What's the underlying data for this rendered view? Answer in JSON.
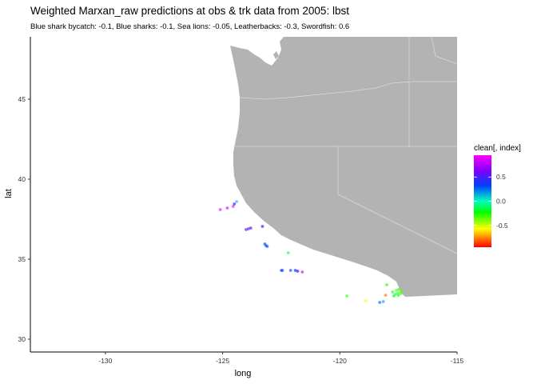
{
  "title": "Weighted Marxan_raw predictions at obs & trk data from 2005: lbst",
  "subtitle": "Blue shark bycatch: -0.1, Blue sharks: -0.1, Sea lions: -0.05, Leatherbacks: -0.3, Swordfish: 0.6",
  "colors": {
    "land": "#b3b3b3",
    "border": "#d9d9d9",
    "axis": "#000000"
  },
  "chart_data": {
    "type": "scatter",
    "xlabel": "long",
    "ylabel": "lat",
    "xlim": [
      -133.2,
      -115
    ],
    "ylim": [
      29.2,
      48.9
    ],
    "xticks": [
      -130,
      -125,
      -120,
      -115
    ],
    "xtick_labels": [
      "-130",
      "-125",
      "-120",
      "-115"
    ],
    "yticks": [
      30,
      35,
      40,
      45
    ],
    "ytick_labels": [
      "30",
      "35",
      "40",
      "45"
    ],
    "grid": false,
    "legend": {
      "title": "clean[, index]",
      "placement": "right",
      "type": "colorbar",
      "range": [
        -0.95,
        0.95
      ],
      "ticks": [
        0.5,
        0.0,
        -0.5
      ],
      "tick_labels": [
        "0.5",
        "0.0",
        "-0.5"
      ]
    },
    "points": [
      {
        "x": -124.4,
        "y": 38.6,
        "value": 0.3
      },
      {
        "x": -124.5,
        "y": 38.45,
        "value": 0.6
      },
      {
        "x": -124.55,
        "y": 38.3,
        "value": 0.9
      },
      {
        "x": -124.8,
        "y": 38.2,
        "value": 0.85
      },
      {
        "x": -125.1,
        "y": 38.1,
        "value": 0.9
      },
      {
        "x": -123.3,
        "y": 37.05,
        "value": 0.6
      },
      {
        "x": -123.8,
        "y": 36.95,
        "value": 0.65
      },
      {
        "x": -123.9,
        "y": 36.9,
        "value": 0.7
      },
      {
        "x": -124.0,
        "y": 36.85,
        "value": 0.7
      },
      {
        "x": -123.2,
        "y": 35.95,
        "value": 0.5
      },
      {
        "x": -123.15,
        "y": 35.85,
        "value": 0.45
      },
      {
        "x": -123.1,
        "y": 35.8,
        "value": 0.5
      },
      {
        "x": -122.2,
        "y": 35.4,
        "value": -0.05
      },
      {
        "x": -122.5,
        "y": 34.3,
        "value": 0.45
      },
      {
        "x": -122.45,
        "y": 34.3,
        "value": 0.5
      },
      {
        "x": -122.1,
        "y": 34.3,
        "value": 0.5
      },
      {
        "x": -121.9,
        "y": 34.3,
        "value": 0.55
      },
      {
        "x": -121.8,
        "y": 34.25,
        "value": 0.6
      },
      {
        "x": -121.6,
        "y": 34.2,
        "value": 0.85
      },
      {
        "x": -118.0,
        "y": 33.4,
        "value": -0.2
      },
      {
        "x": -119.7,
        "y": 32.7,
        "value": -0.25
      },
      {
        "x": -118.9,
        "y": 32.4,
        "value": -0.55
      },
      {
        "x": -118.3,
        "y": 32.3,
        "value": 0.45
      },
      {
        "x": -118.15,
        "y": 32.35,
        "value": 0.35
      },
      {
        "x": -118.05,
        "y": 32.75,
        "value": -0.8
      },
      {
        "x": -117.75,
        "y": 32.95,
        "value": -0.15
      },
      {
        "x": -117.6,
        "y": 33.05,
        "value": -0.3
      },
      {
        "x": -117.5,
        "y": 33.1,
        "value": -0.2
      },
      {
        "x": -117.45,
        "y": 32.95,
        "value": -0.35
      },
      {
        "x": -117.4,
        "y": 32.85,
        "value": -0.25
      },
      {
        "x": -117.55,
        "y": 32.85,
        "value": -0.1
      },
      {
        "x": -117.65,
        "y": 32.8,
        "value": -0.05
      },
      {
        "x": -117.7,
        "y": 32.7,
        "value": -0.15
      },
      {
        "x": -117.5,
        "y": 32.75,
        "value": -0.2
      },
      {
        "x": -117.35,
        "y": 33.0,
        "value": -0.3
      }
    ]
  }
}
